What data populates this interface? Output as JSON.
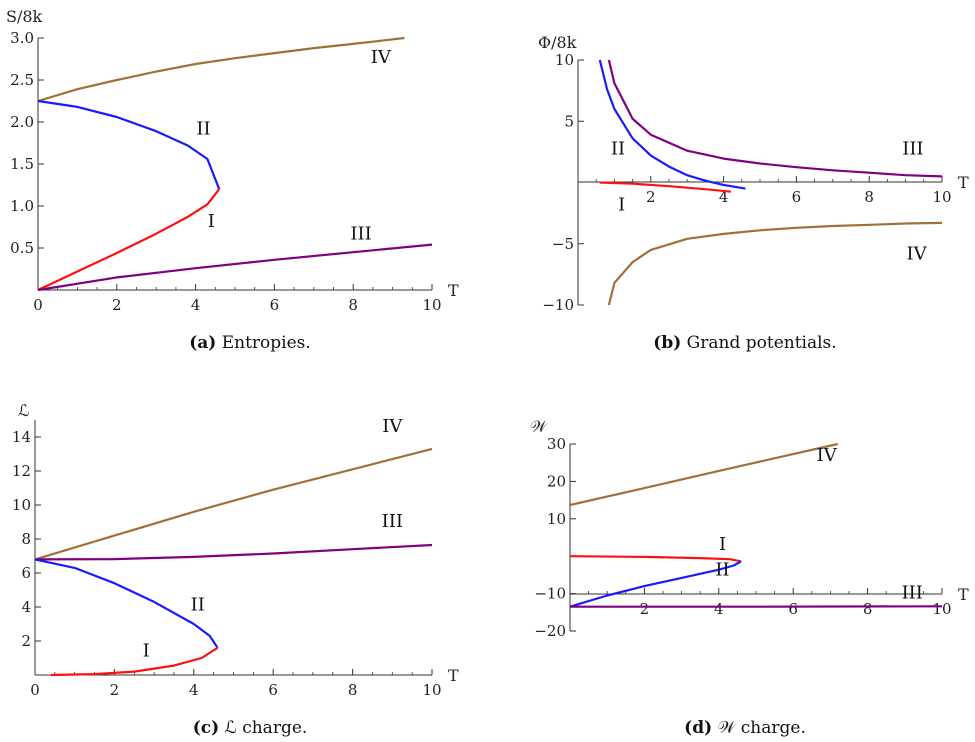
{
  "chart_data": [
    {
      "id": "a",
      "type": "line",
      "ylabel": "S/8k",
      "xlabel": "T",
      "xlim": [
        0,
        10
      ],
      "ylim": [
        0,
        3
      ],
      "xticks": [
        "0",
        "2",
        "4",
        "6",
        "8",
        "10"
      ],
      "yticks": [
        "0.5",
        "1.0",
        "1.5",
        "2.0",
        "2.5",
        "3.0"
      ],
      "caption_tag": "(a)",
      "caption_text": "Entropies.",
      "series": [
        {
          "label": "IV",
          "color": "#a0703a",
          "points": [
            [
              0,
              2.25
            ],
            [
              1,
              2.39
            ],
            [
              2,
              2.5
            ],
            [
              3,
              2.6
            ],
            [
              4,
              2.69
            ],
            [
              5,
              2.76
            ],
            [
              6,
              2.82
            ],
            [
              7,
              2.88
            ],
            [
              8,
              2.93
            ],
            [
              9.3,
              3.0
            ]
          ]
        },
        {
          "label": "II",
          "color": "#1a1aff",
          "points": [
            [
              0,
              2.25
            ],
            [
              1,
              2.18
            ],
            [
              2,
              2.06
            ],
            [
              3,
              1.89
            ],
            [
              3.8,
              1.72
            ],
            [
              4.3,
              1.56
            ],
            [
              4.6,
              1.2
            ]
          ]
        },
        {
          "label": "I",
          "color": "#ff1010",
          "points": [
            [
              0,
              0
            ],
            [
              1,
              0.22
            ],
            [
              2,
              0.44
            ],
            [
              3,
              0.67
            ],
            [
              3.8,
              0.87
            ],
            [
              4.3,
              1.02
            ],
            [
              4.6,
              1.2
            ]
          ]
        },
        {
          "label": "III",
          "color": "#800080",
          "points": [
            [
              0,
              0
            ],
            [
              2,
              0.15
            ],
            [
              4,
              0.26
            ],
            [
              6,
              0.36
            ],
            [
              8,
              0.45
            ],
            [
              10,
              0.54
            ]
          ]
        }
      ],
      "labels": [
        {
          "text": "IV",
          "x": 8.7,
          "y": 2.7
        },
        {
          "text": "II",
          "x": 4.2,
          "y": 1.85
        },
        {
          "text": "I",
          "x": 4.4,
          "y": 0.75
        },
        {
          "text": "III",
          "x": 8.2,
          "y": 0.6
        }
      ]
    },
    {
      "id": "b",
      "type": "line",
      "ylabel": "Φ/8k",
      "xlabel": "T",
      "xlim": [
        0,
        10
      ],
      "ylim": [
        -10,
        10
      ],
      "xticks": [
        "2",
        "4",
        "6",
        "8",
        "10"
      ],
      "yticks": [
        "−10",
        "−5",
        "5",
        "10"
      ],
      "caption_tag": "(b)",
      "caption_text": "Grand potentials.",
      "series": [
        {
          "label": "II",
          "color": "#1a1aff",
          "points": [
            [
              0.6,
              10
            ],
            [
              0.8,
              7.6
            ],
            [
              1,
              6
            ],
            [
              1.5,
              3.6
            ],
            [
              2,
              2.2
            ],
            [
              2.5,
              1.3
            ],
            [
              3,
              0.6
            ],
            [
              3.5,
              0.15
            ],
            [
              4,
              -0.2
            ],
            [
              4.6,
              -0.5
            ]
          ]
        },
        {
          "label": "III",
          "color": "#800080",
          "points": [
            [
              0.85,
              10
            ],
            [
              1,
              8.1
            ],
            [
              1.5,
              5.2
            ],
            [
              2,
              3.9
            ],
            [
              3,
              2.6
            ],
            [
              4,
              1.95
            ],
            [
              5,
              1.55
            ],
            [
              6,
              1.25
            ],
            [
              7,
              1.0
            ],
            [
              8,
              0.8
            ],
            [
              9,
              0.6
            ],
            [
              10,
              0.5
            ]
          ]
        },
        {
          "label": "I",
          "color": "#ff1010",
          "points": [
            [
              0.6,
              0
            ],
            [
              1.5,
              -0.1
            ],
            [
              2.5,
              -0.3
            ],
            [
              3.5,
              -0.55
            ],
            [
              4.2,
              -0.75
            ]
          ]
        },
        {
          "label": "IV",
          "color": "#a0703a",
          "points": [
            [
              0.85,
              -10
            ],
            [
              1,
              -8.2
            ],
            [
              1.5,
              -6.5
            ],
            [
              2,
              -5.5
            ],
            [
              3,
              -4.6
            ],
            [
              4,
              -4.2
            ],
            [
              5,
              -3.9
            ],
            [
              6,
              -3.7
            ],
            [
              7,
              -3.55
            ],
            [
              8,
              -3.45
            ],
            [
              9,
              -3.35
            ],
            [
              10,
              -3.3
            ]
          ]
        }
      ],
      "labels": [
        {
          "text": "II",
          "x": 1.1,
          "y": 2.3
        },
        {
          "text": "III",
          "x": 9.2,
          "y": 2.3
        },
        {
          "text": "I",
          "x": 1.2,
          "y": -2.3
        },
        {
          "text": "IV",
          "x": 9.3,
          "y": -6.3
        }
      ]
    },
    {
      "id": "c",
      "type": "line",
      "ylabel": "ℒ",
      "xlabel": "T",
      "xlim": [
        0,
        10
      ],
      "ylim": [
        0,
        15
      ],
      "xticks": [
        "0",
        "2",
        "4",
        "6",
        "8",
        "10"
      ],
      "yticks": [
        "2",
        "4",
        "6",
        "8",
        "10",
        "12",
        "14"
      ],
      "caption_tag": "(c)",
      "caption_text": "ℒ charge.",
      "series": [
        {
          "label": "IV",
          "color": "#a0703a",
          "points": [
            [
              0,
              6.8
            ],
            [
              2,
              8.2
            ],
            [
              4,
              9.6
            ],
            [
              6,
              10.9
            ],
            [
              8,
              12.1
            ],
            [
              10,
              13.3
            ]
          ]
        },
        {
          "label": "III",
          "color": "#800080",
          "points": [
            [
              0,
              6.8
            ],
            [
              2,
              6.82
            ],
            [
              4,
              6.95
            ],
            [
              6,
              7.15
            ],
            [
              8,
              7.4
            ],
            [
              10,
              7.65
            ]
          ]
        },
        {
          "label": "II",
          "color": "#1a1aff",
          "points": [
            [
              0,
              6.8
            ],
            [
              1,
              6.3
            ],
            [
              2,
              5.4
            ],
            [
              3,
              4.3
            ],
            [
              4,
              3.0
            ],
            [
              4.4,
              2.3
            ],
            [
              4.6,
              1.6
            ]
          ]
        },
        {
          "label": "I",
          "color": "#ff1010",
          "points": [
            [
              0.4,
              0
            ],
            [
              1.5,
              0.05
            ],
            [
              2.5,
              0.2
            ],
            [
              3.5,
              0.55
            ],
            [
              4.2,
              1.0
            ],
            [
              4.6,
              1.6
            ]
          ]
        }
      ],
      "labels": [
        {
          "text": "IV",
          "x": 9.0,
          "y": 14.3
        },
        {
          "text": "III",
          "x": 9.0,
          "y": 8.7
        },
        {
          "text": "II",
          "x": 4.1,
          "y": 3.8
        },
        {
          "text": "I",
          "x": 2.8,
          "y": 1.1
        }
      ]
    },
    {
      "id": "d",
      "type": "line",
      "ylabel": "𝒲",
      "xlabel": "T",
      "xlim": [
        0,
        10
      ],
      "ylim": [
        -20,
        30
      ],
      "xticks": [
        "2",
        "4",
        "6",
        "8",
        "10"
      ],
      "yticks": [
        "−20",
        "−10",
        "10",
        "20",
        "30"
      ],
      "caption_tag": "(d)",
      "caption_text": "𝒲 charge.",
      "series": [
        {
          "label": "IV",
          "color": "#a0703a",
          "points": [
            [
              0,
              13.7
            ],
            [
              2,
              18.2
            ],
            [
              4,
              22.8
            ],
            [
              6,
              27.3
            ],
            [
              7.2,
              30
            ]
          ]
        },
        {
          "label": "I",
          "color": "#ff1010",
          "points": [
            [
              0,
              0
            ],
            [
              2,
              -0.2
            ],
            [
              3.5,
              -0.5
            ],
            [
              4.3,
              -0.8
            ],
            [
              4.6,
              -1.4
            ]
          ]
        },
        {
          "label": "II",
          "color": "#1a1aff",
          "points": [
            [
              0,
              -13.5
            ],
            [
              1,
              -10.5
            ],
            [
              2,
              -8
            ],
            [
              3,
              -5.8
            ],
            [
              4,
              -3.6
            ],
            [
              4.4,
              -2.5
            ],
            [
              4.6,
              -1.4
            ]
          ]
        },
        {
          "label": "III",
          "color": "#800080",
          "points": [
            [
              0,
              -13.5
            ],
            [
              5,
              -13.5
            ],
            [
              10,
              -13.4
            ]
          ]
        }
      ],
      "labels": [
        {
          "text": "IV",
          "x": 6.9,
          "y": 25.5
        },
        {
          "text": "I",
          "x": 4.1,
          "y": 1.6
        },
        {
          "text": "II",
          "x": 4.1,
          "y": -5.2
        },
        {
          "text": "III",
          "x": 9.2,
          "y": -11.3
        }
      ]
    }
  ]
}
